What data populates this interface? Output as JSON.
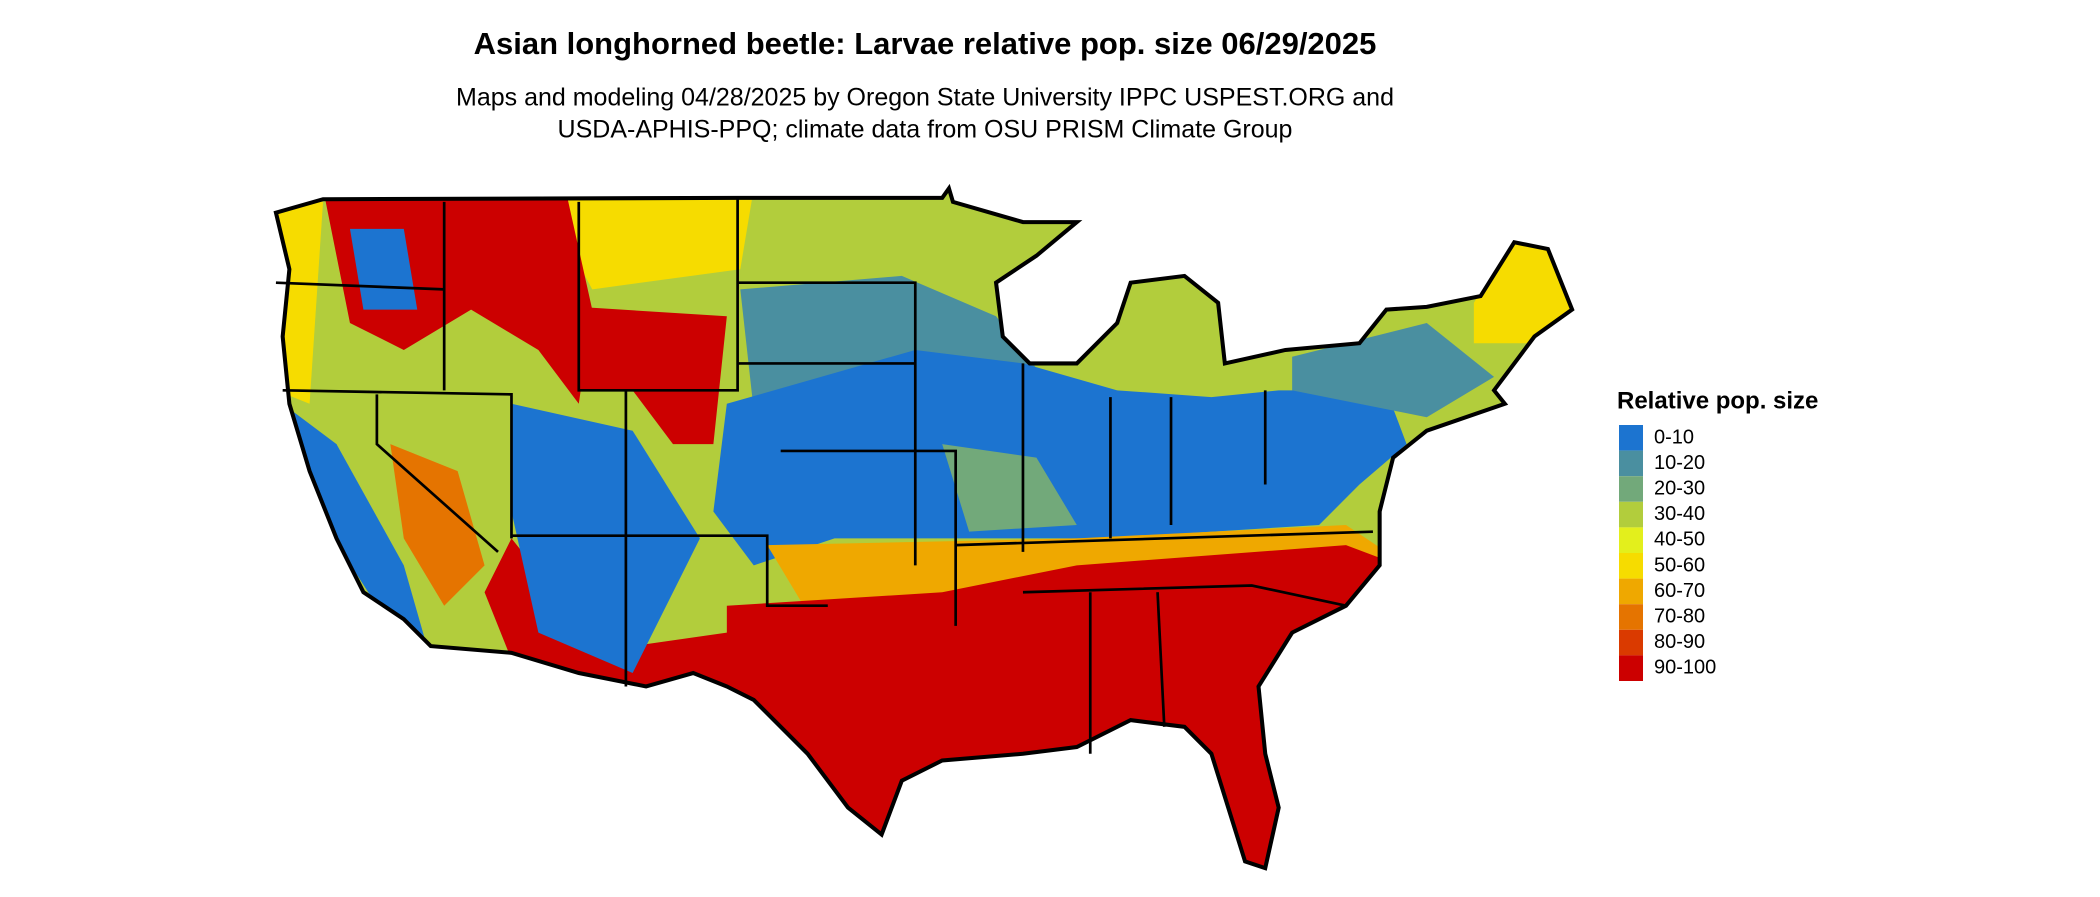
{
  "header": {
    "title": "Asian longhorned beetle: Larvae relative pop. size 06/29/2025",
    "subtitle_lines": [
      "Maps and modeling 04/28/2025 by Oregon State University IPPC USPEST.ORG and",
      "USDA-APHIS-PPQ; climate data from OSU PRISM Climate Group"
    ]
  },
  "legend": {
    "title": "Relative pop. size",
    "items": [
      {
        "label": "0-10",
        "color": "#1c74d0"
      },
      {
        "label": "10-20",
        "color": "#4a8fa0"
      },
      {
        "label": "20-30",
        "color": "#72a97a"
      },
      {
        "label": "30-40",
        "color": "#b2cd3c"
      },
      {
        "label": "40-50",
        "color": "#e3ef1c"
      },
      {
        "label": "50-60",
        "color": "#f6dc00"
      },
      {
        "label": "60-70",
        "color": "#efa800"
      },
      {
        "label": "70-80",
        "color": "#e57400"
      },
      {
        "label": "80-90",
        "color": "#da3a00"
      },
      {
        "label": "90-100",
        "color": "#cc0000"
      }
    ]
  }
}
